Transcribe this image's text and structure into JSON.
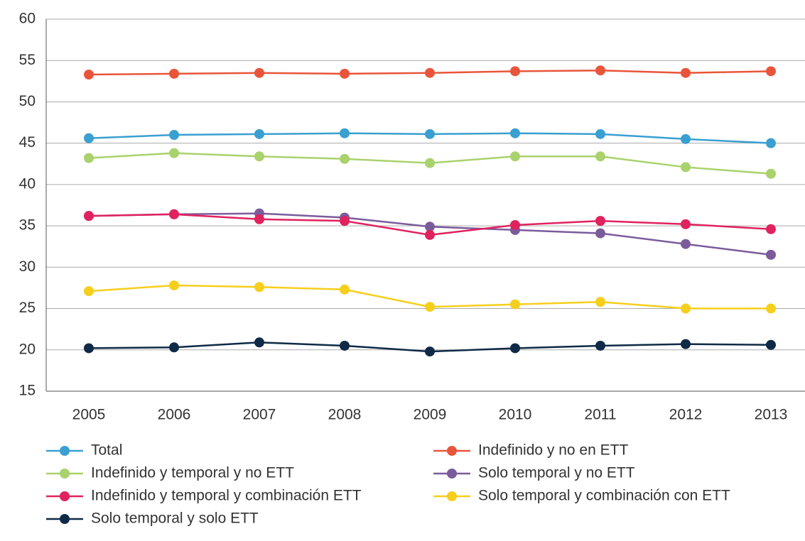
{
  "chart_data": {
    "type": "line",
    "categories": [
      "2005",
      "2006",
      "2007",
      "2008",
      "2009",
      "2010",
      "2011",
      "2012",
      "2013"
    ],
    "series": [
      {
        "name": "Total",
        "color": "#3a9fd1",
        "values": [
          45.6,
          46.0,
          46.1,
          46.2,
          46.1,
          46.2,
          46.1,
          45.5,
          45.0
        ]
      },
      {
        "name": "Indefinido y no en ETT",
        "color": "#e9553a",
        "values": [
          53.3,
          53.4,
          53.5,
          53.4,
          53.5,
          53.7,
          53.8,
          53.5,
          53.7
        ]
      },
      {
        "name": "Indefinido y temporal y no ETT",
        "color": "#a9d26c",
        "values": [
          43.2,
          43.8,
          43.4,
          43.1,
          42.6,
          43.4,
          43.4,
          42.1,
          41.3
        ]
      },
      {
        "name": "Solo temporal y no ETT",
        "color": "#7b5c9b",
        "values": [
          36.2,
          36.4,
          36.5,
          36.0,
          34.9,
          34.5,
          34.1,
          32.8,
          31.5
        ]
      },
      {
        "name": "Indefinido y temporal y combinación ETT",
        "color": "#e0225f",
        "values": [
          36.2,
          36.4,
          35.8,
          35.6,
          33.9,
          35.1,
          35.6,
          35.2,
          34.6
        ]
      },
      {
        "name": "Solo temporal y combinación con ETT",
        "color": "#f6cf1c",
        "values": [
          27.1,
          27.8,
          27.6,
          27.3,
          25.2,
          25.5,
          25.8,
          25.0,
          25.0
        ]
      },
      {
        "name": "Solo temporal y solo ETT",
        "color": "#0f2a46",
        "values": [
          20.2,
          20.3,
          20.9,
          20.5,
          19.8,
          20.2,
          20.5,
          20.7,
          20.6
        ]
      }
    ],
    "ylim": [
      15,
      60
    ],
    "yticks": [
      15,
      20,
      25,
      30,
      35,
      40,
      45,
      50,
      55,
      60
    ],
    "grid": true,
    "legend": "bottom"
  }
}
